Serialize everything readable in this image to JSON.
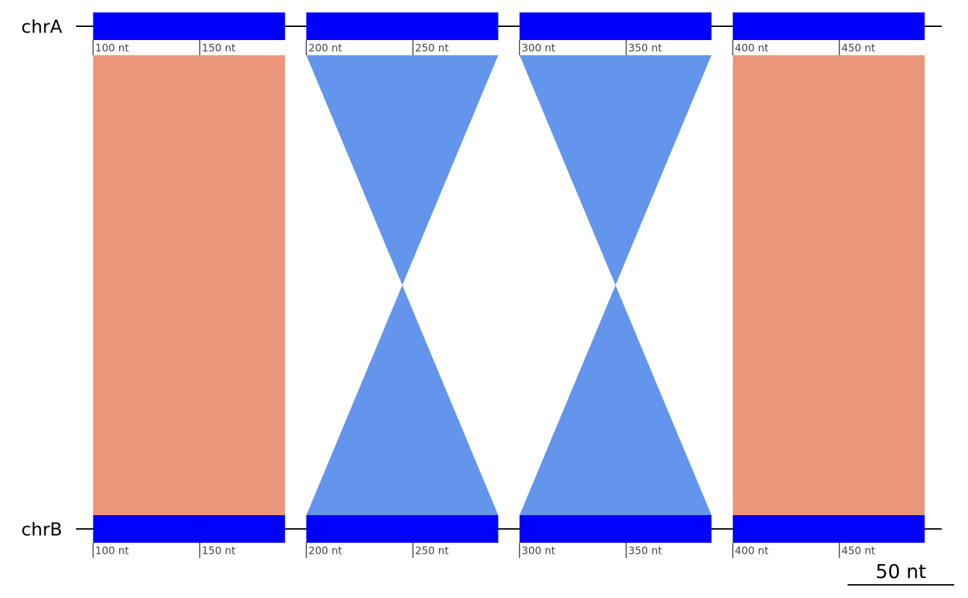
{
  "chart_data": {
    "type": "synteny",
    "xlim": [
      92,
      498
    ],
    "xticks": [
      {
        "value": 100,
        "label": "100 nt"
      },
      {
        "value": 150,
        "label": "150 nt"
      },
      {
        "value": 200,
        "label": "200 nt"
      },
      {
        "value": 250,
        "label": "250 nt"
      },
      {
        "value": 300,
        "label": "300 nt"
      },
      {
        "value": 350,
        "label": "350 nt"
      },
      {
        "value": 400,
        "label": "400 nt"
      },
      {
        "value": 450,
        "label": "450 nt"
      }
    ],
    "block_color": "#0000ff",
    "sequences": [
      {
        "name": "chrA",
        "blocks": [
          [
            100,
            190
          ],
          [
            200,
            290
          ],
          [
            300,
            390
          ],
          [
            400,
            490
          ]
        ]
      },
      {
        "name": "chrB",
        "blocks": [
          [
            100,
            190
          ],
          [
            200,
            290
          ],
          [
            300,
            390
          ],
          [
            400,
            490
          ]
        ]
      }
    ],
    "links": [
      {
        "from": [
          100,
          190
        ],
        "to": [
          100,
          190
        ],
        "color": "#e9967a"
      },
      {
        "from": [
          200,
          290
        ],
        "to": [
          290,
          200
        ],
        "color": "#6495ed"
      },
      {
        "from": [
          300,
          390
        ],
        "to": [
          390,
          300
        ],
        "color": "#6495ed"
      },
      {
        "from": [
          400,
          490
        ],
        "to": [
          400,
          490
        ],
        "color": "#e9967a"
      }
    ],
    "scale_bar": {
      "length": 50,
      "label": "50 nt"
    }
  }
}
